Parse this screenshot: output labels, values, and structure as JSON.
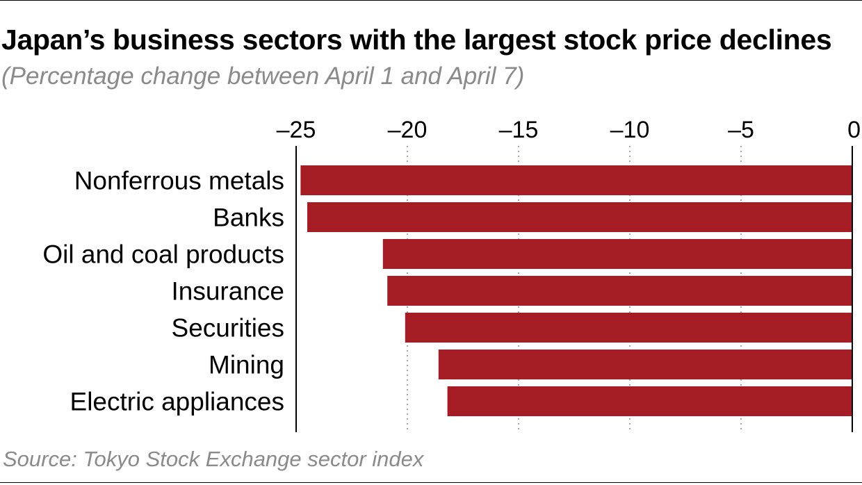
{
  "title": "Japan’s business sectors with the largest stock price declines",
  "subtitle": "(Percentage change between April 1 and April 7)",
  "source": "Source: Tokyo Stock Exchange sector index",
  "colors": {
    "bar": "#a51c24",
    "grid": "#888888",
    "text": "#000000",
    "muted": "#8a8a8a"
  },
  "chart_data": {
    "type": "bar",
    "orientation": "horizontal",
    "title": "Japan’s business sectors with the largest stock price declines",
    "subtitle": "(Percentage change between April 1 and April 7)",
    "categories": [
      "Nonferrous metals",
      "Banks",
      "Oil and coal products",
      "Insurance",
      "Securities",
      "Mining",
      "Electric appliances"
    ],
    "values": [
      -24.8,
      -24.5,
      -21.1,
      -20.9,
      -20.1,
      -18.6,
      -18.2
    ],
    "xlim": [
      -25,
      0
    ],
    "xticks": [
      -25,
      -20,
      -15,
      -10,
      -5,
      0
    ],
    "xtick_labels": [
      "–25",
      "–20",
      "–15",
      "–10",
      "–5",
      "0"
    ],
    "axis_position": "top",
    "grid": true,
    "legend": "none"
  }
}
